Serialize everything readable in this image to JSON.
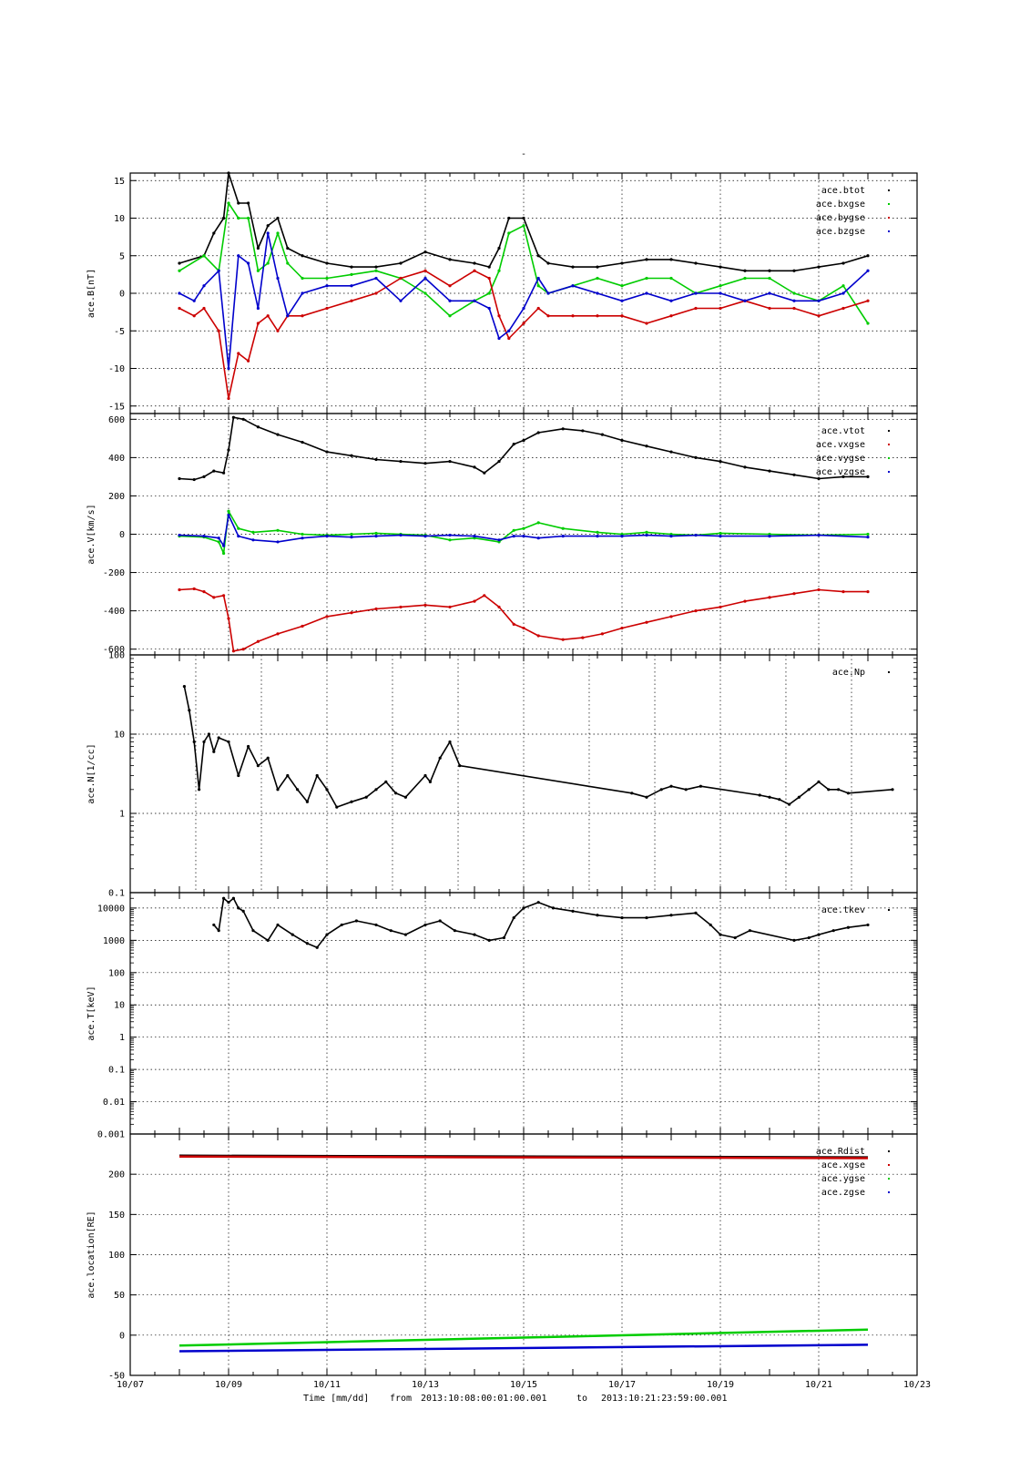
{
  "figure": {
    "title": "-",
    "footer": {
      "xlabel": "Time [mm/dd]",
      "from_label": "from",
      "start": "2013:10:08:00:01:00.001",
      "to_label": "to",
      "end": "2013:10:21:23:59:00.001"
    },
    "x_axis": {
      "xlim": [
        0,
        16
      ],
      "ticks": [
        {
          "day": 0,
          "label": "10/07"
        },
        {
          "day": 2,
          "label": "10/09"
        },
        {
          "day": 4,
          "label": "10/11"
        },
        {
          "day": 6,
          "label": "10/13"
        },
        {
          "day": 8,
          "label": "10/15"
        },
        {
          "day": 10,
          "label": "10/17"
        },
        {
          "day": 12,
          "label": "10/19"
        },
        {
          "day": 14,
          "label": "10/21"
        },
        {
          "day": 16,
          "label": "10/23"
        }
      ]
    },
    "colors": {
      "black": "#000000",
      "red": "#cc0000",
      "green": "#00cc00",
      "blue": "#0000cc"
    }
  },
  "chart_data": [
    {
      "type": "scatter",
      "ylabel": "ace.B[nT]",
      "ylim": [
        -16,
        16
      ],
      "yticks": [
        -15,
        -10,
        -5,
        0,
        5,
        10,
        15
      ],
      "grid": true,
      "legend": "top-right",
      "x_grid_days": [
        2,
        4,
        6,
        8,
        10,
        12,
        14
      ],
      "series": [
        {
          "name": "ace.btot",
          "color": "#000000",
          "x": [
            1,
            1.5,
            1.7,
            1.9,
            2,
            2.2,
            2.4,
            2.6,
            2.8,
            3,
            3.2,
            3.5,
            4,
            4.5,
            5,
            5.5,
            6,
            6.5,
            7,
            7.3,
            7.5,
            7.7,
            8,
            8.3,
            8.5,
            9,
            9.5,
            10,
            10.5,
            11,
            11.5,
            12,
            12.5,
            13,
            13.5,
            14,
            14.5,
            15
          ],
          "y": [
            4,
            5,
            8,
            10,
            16,
            12,
            12,
            6,
            9,
            10,
            6,
            5,
            4,
            3.5,
            3.5,
            4,
            5.5,
            4.5,
            4,
            3.5,
            6,
            10,
            10,
            5,
            4,
            3.5,
            3.5,
            4,
            4.5,
            4.5,
            4,
            3.5,
            3,
            3,
            3,
            3.5,
            4,
            5
          ]
        },
        {
          "name": "ace.bxgse",
          "color": "#00cc00",
          "x": [
            1,
            1.5,
            1.8,
            2,
            2.2,
            2.4,
            2.6,
            2.8,
            3,
            3.2,
            3.5,
            4,
            4.5,
            5,
            5.5,
            6,
            6.5,
            7,
            7.3,
            7.5,
            7.7,
            8,
            8.3,
            8.5,
            9,
            9.5,
            10,
            10.5,
            11,
            11.5,
            12,
            12.5,
            13,
            13.5,
            14,
            14.5,
            15
          ],
          "y": [
            3,
            5,
            3,
            12,
            10,
            10,
            3,
            4,
            8,
            4,
            2,
            2,
            2.5,
            3,
            2,
            0,
            -3,
            -1,
            0,
            3,
            8,
            9,
            1,
            0,
            1,
            2,
            1,
            2,
            2,
            0,
            1,
            2,
            2,
            0,
            -1,
            1,
            -4
          ]
        },
        {
          "name": "ace.bygse",
          "color": "#cc0000",
          "x": [
            1,
            1.3,
            1.5,
            1.8,
            2,
            2.2,
            2.4,
            2.6,
            2.8,
            3,
            3.2,
            3.5,
            4,
            4.5,
            5,
            5.5,
            6,
            6.5,
            7,
            7.3,
            7.5,
            7.7,
            8,
            8.3,
            8.5,
            9,
            9.5,
            10,
            10.5,
            11,
            11.5,
            12,
            12.5,
            13,
            13.5,
            14,
            14.5,
            15
          ],
          "y": [
            -2,
            -3,
            -2,
            -5,
            -14,
            -8,
            -9,
            -4,
            -3,
            -5,
            -3,
            -3,
            -2,
            -1,
            0,
            2,
            3,
            1,
            3,
            2,
            -3,
            -6,
            -4,
            -2,
            -3,
            -3,
            -3,
            -3,
            -4,
            -3,
            -2,
            -2,
            -1,
            -2,
            -2,
            -3,
            -2,
            -1
          ]
        },
        {
          "name": "ace.bzgse",
          "color": "#0000cc",
          "x": [
            1,
            1.3,
            1.5,
            1.8,
            2,
            2.2,
            2.4,
            2.6,
            2.8,
            3,
            3.2,
            3.5,
            4,
            4.5,
            5,
            5.5,
            6,
            6.5,
            7,
            7.3,
            7.5,
            7.7,
            8,
            8.3,
            8.5,
            9,
            9.5,
            10,
            10.5,
            11,
            11.5,
            12,
            12.5,
            13,
            13.5,
            14,
            14.5,
            15
          ],
          "y": [
            0,
            -1,
            1,
            3,
            -10,
            5,
            4,
            -2,
            8,
            2,
            -3,
            0,
            1,
            1,
            2,
            -1,
            2,
            -1,
            -1,
            -2,
            -6,
            -5,
            -2,
            2,
            0,
            1,
            0,
            -1,
            0,
            -1,
            0,
            0,
            -1,
            0,
            -1,
            -1,
            0,
            3
          ]
        }
      ]
    },
    {
      "type": "scatter",
      "ylabel": "ace.V[km/s]",
      "ylim": [
        -630,
        630
      ],
      "yticks": [
        -600,
        -400,
        -200,
        0,
        200,
        400,
        600
      ],
      "grid": true,
      "legend": "top-right",
      "x_grid_days": [
        2,
        4,
        6,
        8,
        10,
        12,
        14
      ],
      "series": [
        {
          "name": "ace.vtot",
          "color": "#000000",
          "x": [
            1,
            1.3,
            1.5,
            1.7,
            1.9,
            2,
            2.1,
            2.3,
            2.6,
            3,
            3.5,
            4,
            4.5,
            5,
            5.5,
            6,
            6.5,
            7,
            7.2,
            7.5,
            7.8,
            8,
            8.3,
            8.8,
            9.2,
            9.6,
            10,
            10.5,
            11,
            11.5,
            12,
            12.5,
            13,
            13.5,
            14,
            14.5,
            15
          ],
          "y": [
            290,
            285,
            300,
            330,
            320,
            440,
            610,
            600,
            560,
            520,
            480,
            430,
            410,
            390,
            380,
            370,
            380,
            350,
            320,
            380,
            470,
            490,
            530,
            550,
            540,
            520,
            490,
            460,
            430,
            400,
            380,
            350,
            330,
            310,
            290,
            300,
            300
          ]
        },
        {
          "name": "ace.vxgse",
          "color": "#cc0000",
          "x": [
            1,
            1.3,
            1.5,
            1.7,
            1.9,
            2,
            2.1,
            2.3,
            2.6,
            3,
            3.5,
            4,
            4.5,
            5,
            5.5,
            6,
            6.5,
            7,
            7.2,
            7.5,
            7.8,
            8,
            8.3,
            8.8,
            9.2,
            9.6,
            10,
            10.5,
            11,
            11.5,
            12,
            12.5,
            13,
            13.5,
            14,
            14.5,
            15
          ],
          "y": [
            -290,
            -285,
            -300,
            -330,
            -320,
            -440,
            -610,
            -600,
            -560,
            -520,
            -480,
            -430,
            -410,
            -390,
            -380,
            -370,
            -380,
            -350,
            -320,
            -380,
            -470,
            -490,
            -530,
            -550,
            -540,
            -520,
            -490,
            -460,
            -430,
            -400,
            -380,
            -350,
            -330,
            -310,
            -290,
            -300,
            -300
          ]
        },
        {
          "name": "ace.vygse",
          "color": "#00cc00",
          "x": [
            1,
            1.5,
            1.8,
            1.9,
            2,
            2.2,
            2.5,
            3,
            3.5,
            4,
            4.5,
            5,
            5.5,
            6,
            6.5,
            7,
            7.5,
            7.8,
            8,
            8.3,
            8.8,
            9.5,
            10,
            10.5,
            11,
            11.5,
            12,
            13,
            14,
            15
          ],
          "y": [
            -10,
            -15,
            -40,
            -100,
            120,
            30,
            10,
            20,
            0,
            -5,
            0,
            5,
            0,
            -5,
            -30,
            -20,
            -40,
            20,
            30,
            60,
            30,
            10,
            0,
            10,
            0,
            -5,
            5,
            0,
            -5,
            0
          ]
        },
        {
          "name": "ace.vzgse",
          "color": "#0000cc",
          "x": [
            1,
            1.5,
            1.8,
            1.9,
            2,
            2.2,
            2.5,
            3,
            3.5,
            4,
            4.5,
            5,
            5.5,
            6,
            6.5,
            7,
            7.5,
            7.8,
            8,
            8.3,
            8.8,
            9.5,
            10,
            10.5,
            11,
            11.5,
            12,
            13,
            14,
            15
          ],
          "y": [
            -5,
            -10,
            -20,
            -60,
            100,
            -10,
            -30,
            -40,
            -20,
            -10,
            -15,
            -10,
            -5,
            -10,
            -5,
            -10,
            -30,
            -10,
            -10,
            -20,
            -10,
            -10,
            -10,
            -5,
            -10,
            -5,
            -10,
            -10,
            -5,
            -15
          ]
        }
      ]
    },
    {
      "type": "scatter",
      "ylabel": "ace.N[1/cc]",
      "yscale": "log",
      "ylim": [
        0.1,
        100
      ],
      "yticks": [
        0.1,
        1,
        10,
        100
      ],
      "grid": true,
      "legend": "top-right",
      "x_grid_days": [
        1.333,
        2.667,
        4,
        5.333,
        6.667,
        8,
        9.333,
        10.667,
        12,
        13.333,
        14.667
      ],
      "series": [
        {
          "name": "ace.Np",
          "color": "#000000",
          "x": [
            1.1,
            1.2,
            1.3,
            1.4,
            1.5,
            1.6,
            1.7,
            1.8,
            2,
            2.2,
            2.4,
            2.6,
            2.8,
            3,
            3.2,
            3.4,
            3.6,
            3.8,
            4,
            4.2,
            4.5,
            4.8,
            5,
            5.2,
            5.4,
            5.6,
            6,
            6.1,
            6.3,
            6.5,
            6.7,
            10.2,
            10.5,
            10.8,
            11,
            11.3,
            11.6,
            12.8,
            13,
            13.2,
            13.4,
            13.6,
            13.8,
            14,
            14.2,
            14.4,
            14.6,
            15.5
          ],
          "y": [
            40,
            20,
            8,
            2,
            8,
            10,
            6,
            9,
            8,
            3,
            7,
            4,
            5,
            2,
            3,
            2,
            1.4,
            3,
            2,
            1.2,
            1.4,
            1.6,
            2,
            2.5,
            1.8,
            1.6,
            3,
            2.5,
            5,
            8,
            4,
            1.8,
            1.6,
            2,
            2.2,
            2,
            2.2,
            1.7,
            1.6,
            1.5,
            1.3,
            1.6,
            2,
            2.5,
            2,
            2,
            1.8,
            2
          ]
        }
      ]
    },
    {
      "type": "scatter",
      "ylabel": "ace.T[keV]",
      "yscale": "log",
      "ylim": [
        0.001,
        30000
      ],
      "yticks": [
        0.001,
        0.01,
        0.1,
        1,
        10,
        100,
        1000,
        10000
      ],
      "ytick_labels": [
        "0.001",
        "0.01",
        "0.1",
        "1",
        "10",
        "100",
        "1000",
        "10000"
      ],
      "grid": true,
      "legend": "top-right",
      "x_grid_days": [
        2,
        4,
        6,
        8,
        10,
        12,
        14
      ],
      "series": [
        {
          "name": "ace.tkev",
          "color": "#000000",
          "x": [
            1.7,
            1.8,
            1.9,
            2,
            2.1,
            2.2,
            2.3,
            2.5,
            2.8,
            3,
            3.3,
            3.6,
            3.8,
            4,
            4.3,
            4.6,
            5,
            5.3,
            5.6,
            6,
            6.3,
            6.6,
            7,
            7.3,
            7.6,
            7.8,
            8,
            8.3,
            8.6,
            9,
            9.5,
            10,
            10.5,
            11,
            11.5,
            11.8,
            12,
            12.3,
            12.6,
            13.5,
            13.8,
            14,
            14.3,
            14.6,
            15
          ],
          "y": [
            3000,
            2000,
            20000,
            15000,
            20000,
            10000,
            8000,
            2000,
            1000,
            3000,
            1500,
            800,
            600,
            1500,
            3000,
            4000,
            3000,
            2000,
            1500,
            3000,
            4000,
            2000,
            1500,
            1000,
            1200,
            5000,
            10000,
            15000,
            10000,
            8000,
            6000,
            5000,
            5000,
            6000,
            7000,
            3000,
            1500,
            1200,
            2000,
            1000,
            1200,
            1500,
            2000,
            2500,
            3000
          ]
        }
      ]
    },
    {
      "type": "line",
      "ylabel": "ace.location[RE]",
      "ylim": [
        -50,
        250
      ],
      "yticks": [
        -50,
        0,
        50,
        100,
        150,
        200
      ],
      "grid": true,
      "legend": "top-right",
      "x_grid_days": [
        2,
        4,
        6,
        8,
        10,
        12,
        14
      ],
      "series": [
        {
          "name": "ace.Rdist",
          "color": "#000000",
          "x": [
            1,
            15
          ],
          "y": [
            223,
            221
          ]
        },
        {
          "name": "ace.xgse",
          "color": "#cc0000",
          "x": [
            1,
            15
          ],
          "y": [
            222,
            220
          ]
        },
        {
          "name": "ace.ygse",
          "color": "#00cc00",
          "x": [
            1,
            15
          ],
          "y": [
            -13,
            7
          ]
        },
        {
          "name": "ace.zgse",
          "color": "#0000cc",
          "x": [
            1,
            15
          ],
          "y": [
            -20,
            -12
          ]
        }
      ]
    }
  ]
}
